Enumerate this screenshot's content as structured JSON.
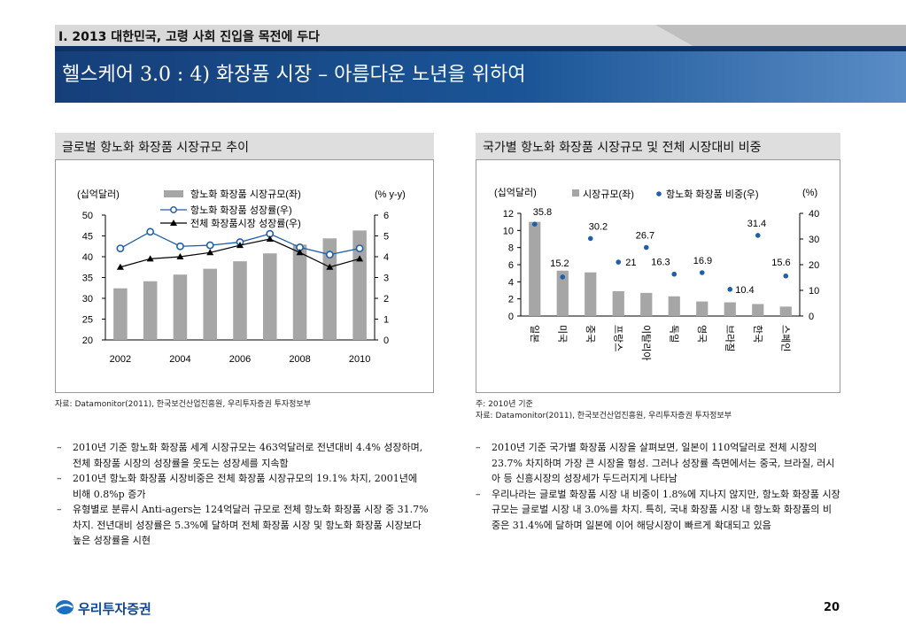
{
  "header": {
    "section_label": "I. 2013 대한민국, 고령 사회 진입을 목전에 두다",
    "page_title": "헬스케어 3.0 : 4) 화장품 시장 – 아름다운 노년을 위하여"
  },
  "left_panel": {
    "title": "글로벌 항노화 화장품 시장규모 추이",
    "source": "자료: Datamonitor(2011), 한국보건산업진흥원, 우리투자증권 투자정보부",
    "bullets": [
      "2010년 기준 항노화 화장품 세계 시장규모는 463억달러로 전년대비 4.4% 성장하며, 전체 화장품 시장의 성장률을 웃도는 성장세를 지속함",
      "2010년 항노화 화장품 시장비중은 전체 화장품 시장규모의 19.1% 차지, 2001년에 비해 0.8%p 증가",
      "유형별로 분류시 Anti-agers는 124억달러 규모로 전체 항노화 화장품 시장 중 31.7% 차지. 전년대비 성장률은 5.3%에 달하며 전체 화장품 시장 및 항노화 화장품 시장보다 높은 성장률을 시현"
    ]
  },
  "right_panel": {
    "title": "국가별 항노화 화장품 시장규모 및 전체 시장대비 비중",
    "note": "주: 2010년 기준",
    "source": "자료: Datamonitor(2011), 한국보건산업진흥원, 우리투자증권 투자정보부",
    "bullets": [
      "2010년 기준 국가별 화장품 시장을 살펴보면, 일본이 110억달러로 전체 시장의 23.7% 차지하며 가장 큰 시장을 형성. 그러나 성장률 측면에서는 중국, 브라질, 러시아 등 신흥시장의 성장세가 두드러지게 나타남",
      "우리나라는 글로벌 화장품 시장 내 비중이 1.8%에 지나지 않지만, 항노화 화장품 시장규모는 글로벌 시장 내 3.0%를 차지. 특히, 국내 화장품 시장 내 항노화 화장품의 비중은 31.4%에 달하며 일본에 이어 해당시장이 빠르게 확대되고 있음"
    ]
  },
  "footer": {
    "logo_text": "우리투자증권",
    "page_number": "20"
  },
  "colors": {
    "title_bar": "#1b5597",
    "bar": "#a6a6a6",
    "line_blue": "#1f5fa8",
    "line_black": "#000000"
  },
  "chart_data": [
    {
      "type": "bar",
      "left_unit": "(십억달러)",
      "right_unit": "(% y-y)",
      "x": [
        2002,
        2003,
        2004,
        2005,
        2006,
        2007,
        2008,
        2009,
        2010
      ],
      "x_tick_labels": [
        "2002",
        "2004",
        "2006",
        "2008",
        "2010"
      ],
      "ylim_left": [
        20,
        50
      ],
      "ylim_right": [
        0,
        6
      ],
      "y_ticks_left": [
        "20",
        "25",
        "30",
        "35",
        "40",
        "45",
        "50"
      ],
      "y_ticks_right": [
        "0",
        "1",
        "2",
        "3",
        "4",
        "5",
        "6"
      ],
      "series": [
        {
          "name": "항노화 화장품 시장규모(좌)",
          "kind": "bar",
          "axis": "left",
          "values": [
            32.4,
            34.1,
            35.7,
            37.1,
            38.9,
            40.8,
            42.9,
            44.4,
            46.3
          ]
        },
        {
          "name": "항노화 화장품 성장률(우)",
          "kind": "line",
          "axis": "right",
          "values": [
            4.4,
            5.2,
            4.5,
            4.55,
            4.7,
            5.1,
            4.45,
            4.1,
            4.4
          ]
        },
        {
          "name": "전체 화장품시장 성장률(우)",
          "kind": "line",
          "axis": "right",
          "values": [
            3.5,
            3.9,
            4.0,
            4.2,
            4.55,
            4.85,
            4.2,
            3.5,
            3.9
          ]
        }
      ]
    },
    {
      "type": "bar",
      "left_unit": "(십억달러)",
      "right_unit": "(%)",
      "categories": [
        "일본",
        "미국",
        "중국",
        "프랑스",
        "이탈리아",
        "독일",
        "영국",
        "브라질",
        "한국",
        "스페인"
      ],
      "ylim_left": [
        0,
        12
      ],
      "ylim_right": [
        0,
        40
      ],
      "y_ticks_left": [
        "0",
        "2",
        "4",
        "6",
        "8",
        "10",
        "12"
      ],
      "y_ticks_right": [
        "0",
        "10",
        "20",
        "30",
        "40"
      ],
      "series": [
        {
          "name": "시장규모(좌)",
          "kind": "bar",
          "axis": "left",
          "values": [
            11.0,
            5.3,
            5.1,
            2.9,
            2.7,
            2.3,
            1.7,
            1.6,
            1.4,
            1.1
          ]
        },
        {
          "name": "항노화 화장품 비중(우)",
          "kind": "points",
          "axis": "right",
          "values": [
            35.8,
            15.2,
            30.2,
            21,
            26.7,
            16.3,
            16.9,
            10.4,
            31.4,
            15.6
          ],
          "labels": [
            "35.8",
            "15.2",
            "30.2",
            "21",
            "26.7",
            "16.3",
            "16.9",
            "10.4",
            "31.4",
            "15.6"
          ]
        }
      ]
    }
  ]
}
